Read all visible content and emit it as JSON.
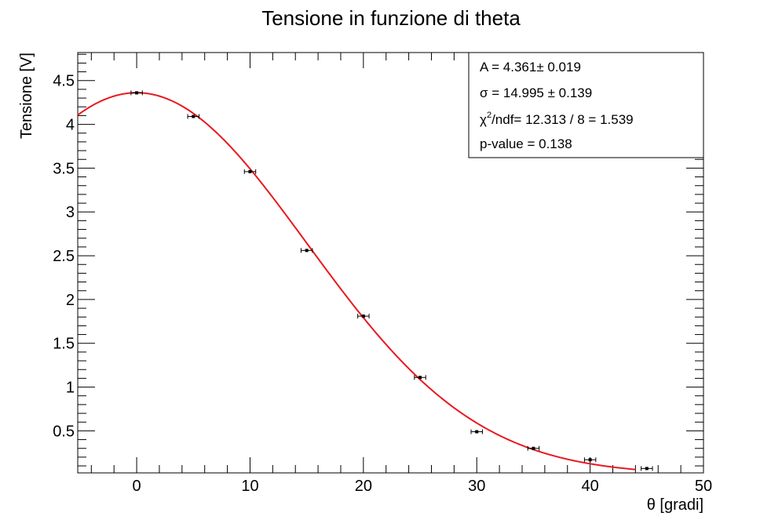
{
  "chart_data": {
    "type": "scatter",
    "title": "Tensione in funzione di theta",
    "xlabel": "θ [gradi]",
    "ylabel": "Tensione [V]",
    "xlim": [
      -5.2,
      50
    ],
    "ylim": [
      0.02,
      4.82
    ],
    "x_ticks": [
      0,
      10,
      20,
      30,
      40,
      50
    ],
    "y_ticks": [
      0.5,
      1,
      1.5,
      2,
      2.5,
      3,
      3.5,
      4,
      4.5
    ],
    "x_tick_labels": [
      "0",
      "10",
      "20",
      "30",
      "40",
      "50"
    ],
    "y_tick_labels": [
      "0.5",
      "1",
      "1.5",
      "2",
      "2.5",
      "3",
      "3.5",
      "4",
      "4.5"
    ],
    "points": {
      "x": [
        0,
        5,
        10,
        15,
        20,
        25,
        30,
        35,
        40,
        45
      ],
      "y": [
        4.36,
        4.09,
        3.46,
        2.56,
        1.81,
        1.11,
        0.49,
        0.3,
        0.17,
        0.07
      ],
      "x_err": [
        0.5,
        0.5,
        0.5,
        0.5,
        0.5,
        0.5,
        0.5,
        0.5,
        0.5,
        0.5
      ],
      "y_err": [
        0.015,
        0.015,
        0.015,
        0.015,
        0.015,
        0.015,
        0.015,
        0.015,
        0.015,
        0.015
      ]
    },
    "fit": {
      "function": "gaussian",
      "A": 4.361,
      "sigma": 14.995,
      "mean": 0,
      "x_range": [
        -5.2,
        44
      ],
      "color": "#e8191f"
    },
    "stats_box": [
      {
        "label": "A = 4.361",
        "pm": "± 0.019"
      },
      {
        "label": "σ = 14.995",
        "pm": "± 0.139"
      },
      {
        "label": "χ²/ndf= 12.313 / 8 = 1.539",
        "pm": ""
      },
      {
        "label": "p-value = 0.138",
        "pm": ""
      }
    ],
    "stats_box_lines": [
      "A = 4.361± 0.019",
      "σ = 14.995 ± 0.139",
      "χ",
      "/ndf= 12.313 / 8 = 1.539",
      "p-value = 0.138"
    ],
    "stats_box_superscript": "2",
    "grid": false,
    "legend": "top-right"
  }
}
